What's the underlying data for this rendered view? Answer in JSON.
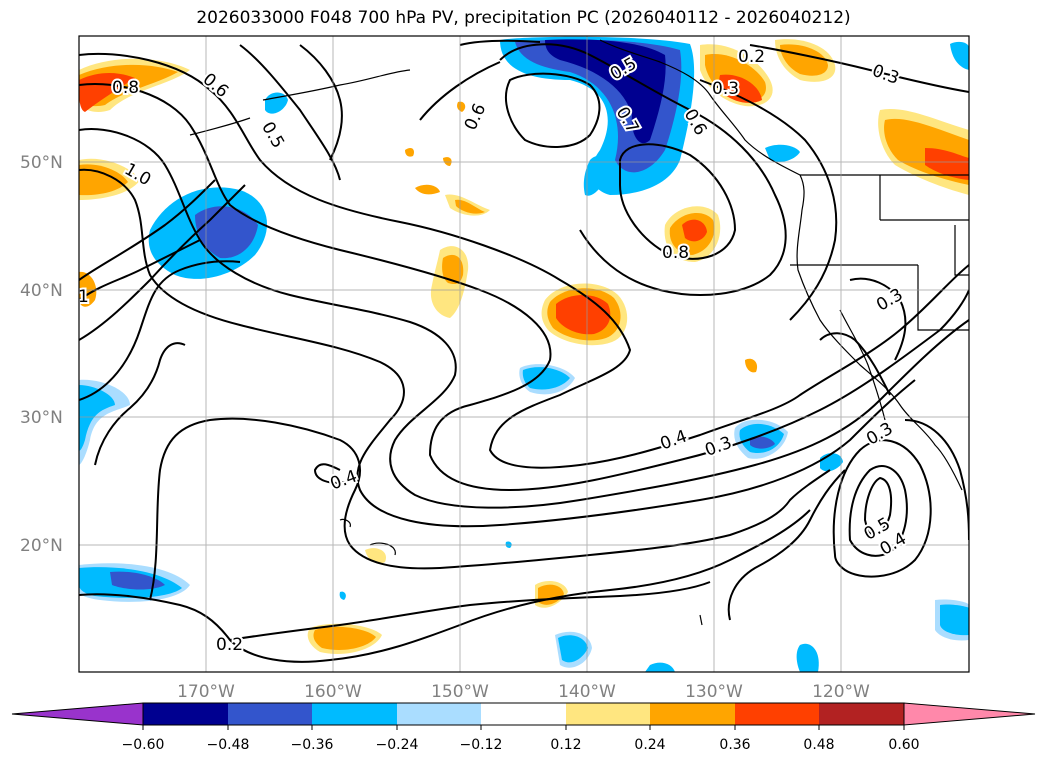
{
  "title": "2026033000 F048 700 hPa PV, precipitation PC (2026040112 - 2026040212)",
  "map": {
    "lat_labels": [
      "50°N",
      "40°N",
      "30°N",
      "20°N"
    ],
    "lon_labels": [
      "170°W",
      "160°W",
      "150°W",
      "140°W",
      "130°W",
      "120°W"
    ],
    "contour_labels": [
      "0.8",
      "0.6",
      "0.5",
      "1.0",
      "1",
      "0.6",
      "0.5",
      "0.7",
      "0.6",
      "0.3",
      "0.2",
      "0.3",
      "0.8",
      "0.3",
      "0.4",
      "0.3",
      "0.4",
      "0.3",
      "0.5",
      "0.4",
      "0.2"
    ]
  },
  "colorbar": {
    "colors": [
      "#9933cc",
      "#000090",
      "#3355cc",
      "#00bbff",
      "#aaddff",
      "#ffffff",
      "#ffe680",
      "#ffa500",
      "#ff4000",
      "#b22222",
      "#ff88aa"
    ],
    "tick_labels": [
      "−0.60",
      "−0.48",
      "−0.36",
      "−0.24",
      "−0.12",
      "0.12",
      "0.24",
      "0.36",
      "0.48",
      "0.60"
    ]
  }
}
